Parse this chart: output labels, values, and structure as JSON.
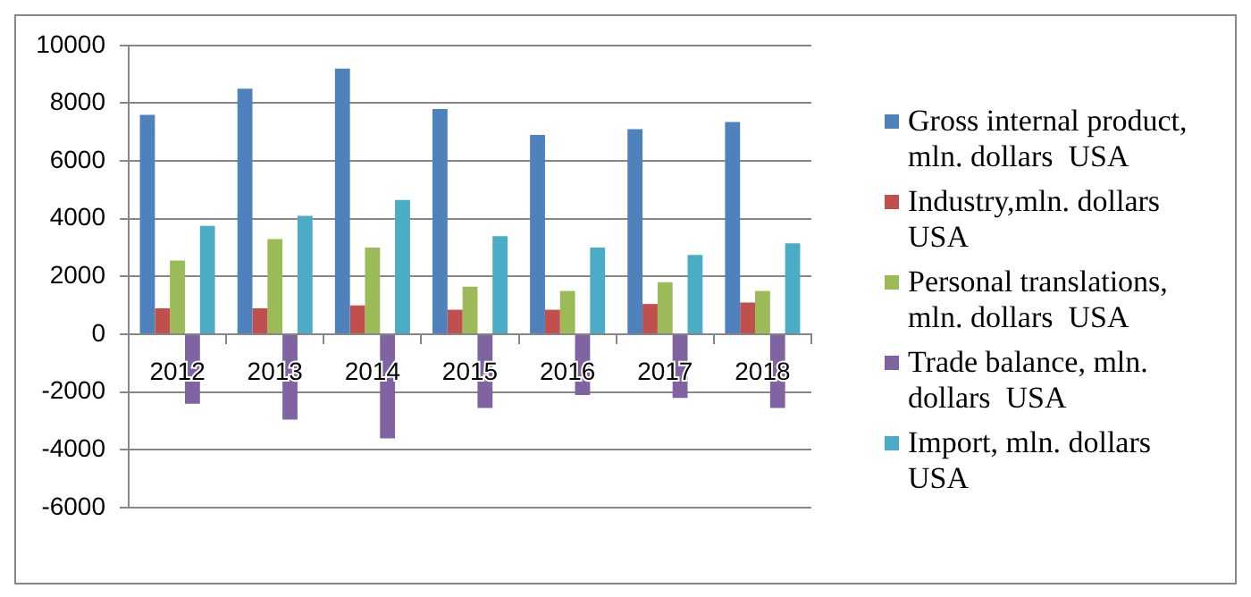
{
  "chart_data": {
    "type": "bar",
    "categories": [
      "2012",
      "2013",
      "2014",
      "2015",
      "2016",
      "2017",
      "2018"
    ],
    "series": [
      {
        "name": "Gross internal product, mln. dollars  USA",
        "color": "#4f81bd",
        "values": [
          7600,
          8500,
          9200,
          7800,
          6900,
          7100,
          7350
        ]
      },
      {
        "name": "Industry,mln. dollars  USA",
        "color": "#c0504d",
        "values": [
          900,
          900,
          1000,
          850,
          850,
          1050,
          1100
        ]
      },
      {
        "name": "Personal translations, mln. dollars  USA",
        "color": "#9bbb59",
        "values": [
          2550,
          3300,
          3000,
          1650,
          1500,
          1800,
          1500
        ]
      },
      {
        "name": "Trade balance, mln. dollars  USA",
        "color": "#8064a2",
        "values": [
          -2400,
          -2950,
          -3600,
          -2550,
          -2100,
          -2200,
          -2550
        ]
      },
      {
        "name": "Import, mln. dollars  USA",
        "color": "#4bacc6",
        "values": [
          3750,
          4100,
          4650,
          3400,
          3000,
          2750,
          3150
        ]
      }
    ],
    "ylim": [
      -6000,
      10000
    ],
    "yticks": [
      -6000,
      -4000,
      -2000,
      0,
      2000,
      4000,
      6000,
      8000,
      10000
    ],
    "grid": "y",
    "legend": "right"
  }
}
